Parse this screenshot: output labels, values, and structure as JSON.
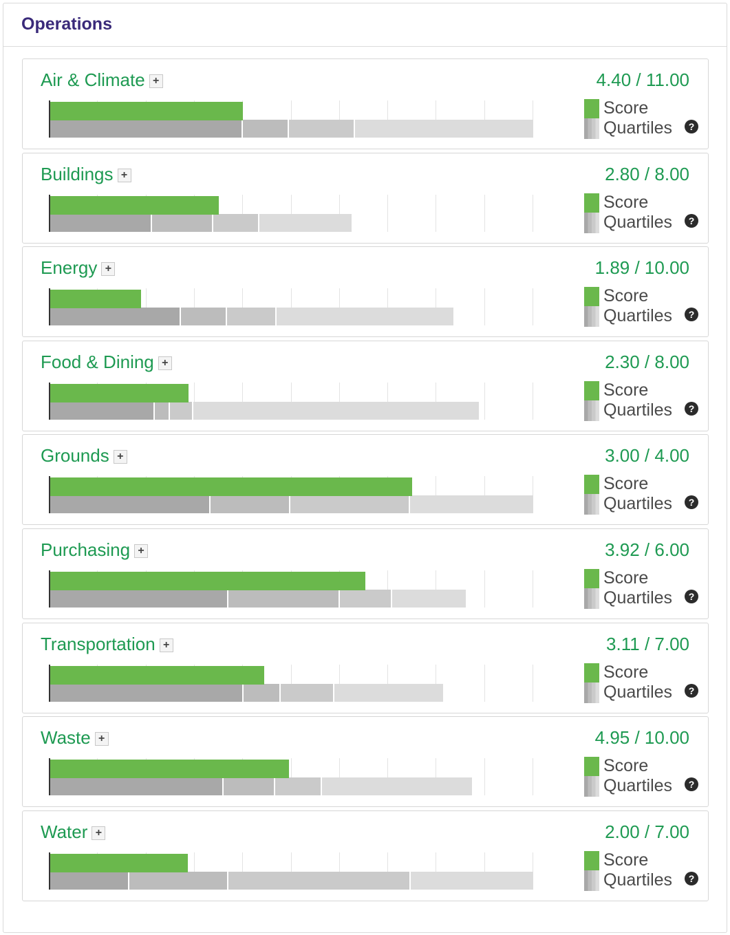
{
  "panel": {
    "title": "Operations"
  },
  "legend": {
    "score_label": "Score",
    "quartiles_label": "Quartiles",
    "help_icon": "question-circle-icon"
  },
  "colors": {
    "title": "#3a2a7a",
    "accent_green": "#1e9a52",
    "score_bar": "#6ab84c"
  },
  "expand_symbol": "+",
  "categories": [
    {
      "name": "Air & Climate",
      "score_text": "4.40 / 11.00",
      "score": 4.4,
      "max": 11.0,
      "quartiles": [
        4.4,
        5.45,
        6.95,
        11.0
      ]
    },
    {
      "name": "Buildings",
      "score_text": "2.80 / 8.00",
      "score": 2.8,
      "max": 8.0,
      "quartiles": [
        1.7,
        2.71,
        3.47,
        5.0
      ]
    },
    {
      "name": "Energy",
      "score_text": "1.89 / 10.00",
      "score": 1.89,
      "max": 10.0,
      "quartiles": [
        2.72,
        3.67,
        4.69,
        8.35
      ]
    },
    {
      "name": "Food & Dining",
      "score_text": "2.30 / 8.00",
      "score": 2.3,
      "max": 8.0,
      "quartiles": [
        1.74,
        1.99,
        2.38,
        7.1
      ]
    },
    {
      "name": "Grounds",
      "score_text": "3.00 / 4.00",
      "score": 3.0,
      "max": 4.0,
      "quartiles": [
        1.33,
        1.99,
        2.98,
        4.0
      ]
    },
    {
      "name": "Purchasing",
      "score_text": "3.92 / 6.00",
      "score": 3.92,
      "max": 6.0,
      "quartiles": [
        2.22,
        3.6,
        4.25,
        5.16
      ]
    },
    {
      "name": "Transportation",
      "score_text": "3.11 / 7.00",
      "score": 3.11,
      "max": 7.0,
      "quartiles": [
        2.81,
        3.35,
        4.12,
        5.7
      ]
    },
    {
      "name": "Waste",
      "score_text": "4.95 / 10.00",
      "score": 4.95,
      "max": 10.0,
      "quartiles": [
        3.6,
        4.67,
        5.63,
        8.74
      ]
    },
    {
      "name": "Water",
      "score_text": "2.00 / 7.00",
      "score": 2.0,
      "max": 7.0,
      "quartiles": [
        1.16,
        2.59,
        5.23,
        7.0
      ]
    }
  ]
}
